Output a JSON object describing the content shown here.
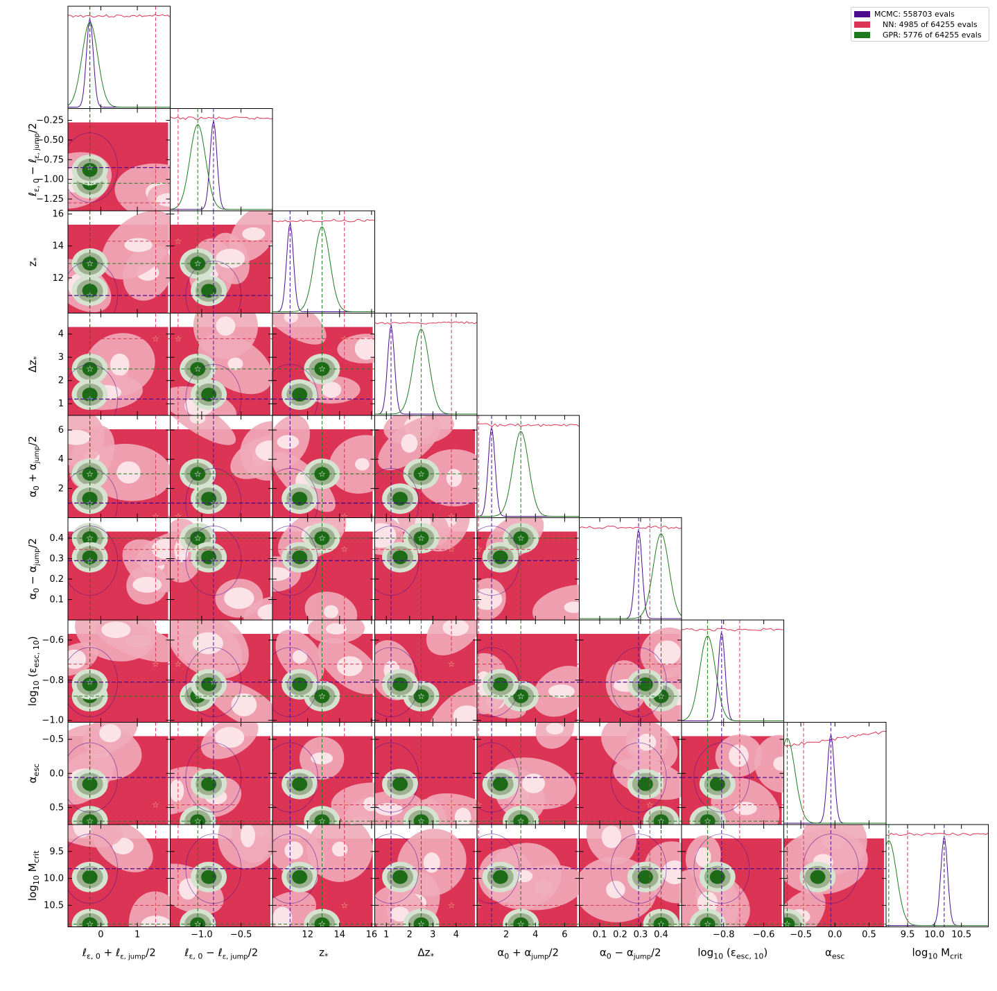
{
  "chart_data": {
    "type": "corner",
    "parameters": [
      {
        "label": "ℓε,0 + ℓε,jump / 2",
        "range": [
          -0.9,
          1.9
        ],
        "ticks": [
          0,
          1
        ]
      },
      {
        "label": "ℓε,0 − ℓε,jump / 2",
        "range": [
          -1.4,
          -0.1
        ],
        "ticks": [
          -1.0,
          -0.5
        ],
        "ytick_labels": [
          "-0.25",
          "-0.50",
          "-0.75",
          "-1.00",
          "-1.25"
        ],
        "yticks": [
          -0.25,
          -0.5,
          -0.75,
          -1.0,
          -1.25
        ]
      },
      {
        "label": "z*",
        "range": [
          9.8,
          16.2
        ],
        "ticks": [
          12,
          14,
          16
        ],
        "yticks": [
          12,
          14,
          16
        ]
      },
      {
        "label": "Δz*",
        "range": [
          0.5,
          4.9
        ],
        "ticks": [
          1,
          2,
          3,
          4
        ],
        "yticks": [
          1,
          2,
          3,
          4
        ]
      },
      {
        "label": "α0 + αjump / 2",
        "range": [
          0,
          7
        ],
        "ticks": [
          2,
          4,
          6
        ],
        "yticks": [
          2,
          4,
          6
        ]
      },
      {
        "label": "α0 − αjump / 2",
        "range": [
          0,
          0.5
        ],
        "ticks": [
          0.1,
          0.2,
          0.3,
          0.4
        ],
        "yticks": [
          0.1,
          0.2,
          0.3,
          0.4
        ]
      },
      {
        "label": "log10 (εesc,10)",
        "range": [
          -1.01,
          -0.5
        ],
        "ticks": [
          -0.8,
          -0.6
        ],
        "yticks": [
          -0.6,
          -0.8,
          -1.0
        ],
        "ytick_labels": [
          "-0.6",
          "-0.8",
          "-1.0"
        ]
      },
      {
        "label": "αesc",
        "range": [
          -0.75,
          0.75
        ],
        "ticks": [
          -0.5,
          0.0,
          0.5
        ],
        "yticks": [
          0.5,
          0.0,
          -0.5
        ]
      },
      {
        "label": "log10 Mcrit",
        "range": [
          9.1,
          11.0
        ],
        "ticks": [
          9.5,
          10.0,
          10.5
        ],
        "yticks": [
          10.5,
          10.0,
          9.5
        ]
      }
    ],
    "xlabel_parts": [
      {
        "main": "ℓ",
        "sub": "ε, 0",
        "op": " + ",
        "frac_num": "ℓ",
        "frac_num_sub": "ε, jump",
        "frac_den": "2"
      },
      {
        "main": "ℓ",
        "sub": "ε, 0",
        "op": " − ",
        "frac_num": "ℓ",
        "frac_num_sub": "ε, jump",
        "frac_den": "2"
      },
      {
        "main": "z",
        "sub": "*"
      },
      {
        "main": "Δz",
        "sub": "*"
      },
      {
        "main": "α",
        "sub": "0",
        "op": " + ",
        "frac_num": "α",
        "frac_num_sub": "jump",
        "frac_den": "2"
      },
      {
        "main": "α",
        "sub": "0",
        "op": " − ",
        "frac_num": "α",
        "frac_num_sub": "jump",
        "frac_den": "2"
      },
      {
        "main": "log",
        "sub": "10",
        "rest": "  (ε",
        "rest_sub": "esc, 10",
        "tail": ")"
      },
      {
        "main": "α",
        "sub": "esc"
      },
      {
        "main": "log",
        "sub": "10",
        "rest": "  M",
        "rest_sub": "crit"
      }
    ],
    "x_tick_labels": [
      [
        "0",
        "1"
      ],
      [
        "−1.0",
        "−0.5"
      ],
      [
        "12",
        "14",
        "16"
      ],
      [
        "1",
        "2",
        "3",
        "4"
      ],
      [
        "2",
        "4",
        "6"
      ],
      [
        "0.1",
        "0.2",
        "0.3",
        "0.4"
      ],
      [
        "−0.8",
        "−0.6"
      ],
      [
        "−0.5",
        "0.0",
        "0.5"
      ],
      [
        "9.5",
        "10.0",
        "10.5"
      ]
    ],
    "y_tick_labels": [
      [],
      [
        "−0.25",
        "−0.50",
        "−0.75",
        "−1.00",
        "−1.25"
      ],
      [
        "12",
        "14",
        "16"
      ],
      [
        "1",
        "2",
        "3",
        "4"
      ],
      [
        "2",
        "4",
        "6"
      ],
      [
        "0.1",
        "0.2",
        "0.3",
        "0.4"
      ],
      [
        "−0.6",
        "−0.8",
        "−1.0"
      ],
      [
        "−0.5",
        "0.0",
        "0.5"
      ],
      [
        "9.5",
        "10.0",
        "10.5"
      ]
    ],
    "truths": {
      "MCMC": [
        -0.3,
        -0.85,
        10.9,
        1.2,
        1.0,
        0.29,
        -0.81,
        -0.06,
        10.18
      ],
      "NN": [
        1.5,
        -1.3,
        14.3,
        3.8,
        0.1,
        0.345,
        -0.72,
        -0.46,
        9.5
      ],
      "GPR": [
        -0.3,
        -1.05,
        12.9,
        2.5,
        3.0,
        0.4,
        -0.88,
        -0.7,
        9.15
      ]
    },
    "legend": [
      {
        "label": "MCMC: 558703 evals",
        "color": "#4b0c8f"
      },
      {
        "label": "NN: 4985 of 64255 evals",
        "color": "#dc3455"
      },
      {
        "label": "GPR: 5776 of 64255 evals",
        "color": "#1f7a1f"
      }
    ],
    "series": [
      {
        "name": "MCMC: 558703 evals",
        "color": "#4b0c8f"
      },
      {
        "name": "NN: 4985 of 64255 evals",
        "color": "#dc3455"
      },
      {
        "name": "GPR: 5776 of 64255 evals",
        "color": "#1f7a1f"
      }
    ]
  }
}
